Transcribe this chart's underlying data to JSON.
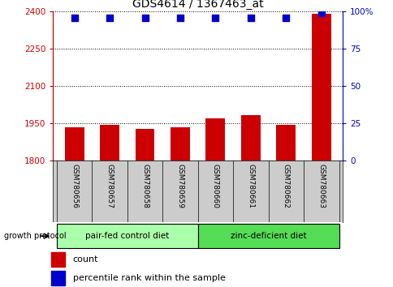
{
  "title": "GDS4614 / 1367463_at",
  "samples": [
    "GSM780656",
    "GSM780657",
    "GSM780658",
    "GSM780659",
    "GSM780660",
    "GSM780661",
    "GSM780662",
    "GSM780663"
  ],
  "counts": [
    1935,
    1943,
    1928,
    1934,
    1970,
    1982,
    1943,
    2390
  ],
  "percentiles": [
    96,
    96,
    96,
    96,
    96,
    96,
    96,
    99
  ],
  "ylim_left": [
    1800,
    2400
  ],
  "ylim_right": [
    0,
    100
  ],
  "yticks_left": [
    1800,
    1950,
    2100,
    2250,
    2400
  ],
  "yticks_right": [
    0,
    25,
    50,
    75,
    100
  ],
  "bar_color": "#cc0000",
  "dot_color": "#0000cc",
  "bar_width": 0.55,
  "group1_label": "pair-fed control diet",
  "group2_label": "zinc-deficient diet",
  "group1_color": "#aaffaa",
  "group2_color": "#55dd55",
  "group1_indices": [
    0,
    1,
    2,
    3
  ],
  "group2_indices": [
    4,
    5,
    6,
    7
  ],
  "legend_count_label": "count",
  "legend_pct_label": "percentile rank within the sample",
  "growth_protocol_label": "growth protocol",
  "background_color": "#ffffff",
  "plot_bg_color": "#ffffff",
  "label_area_color": "#cccccc",
  "dotted_grid_color": "#000000",
  "right_axis_color": "#0000cc",
  "left_axis_color": "#cc0000"
}
